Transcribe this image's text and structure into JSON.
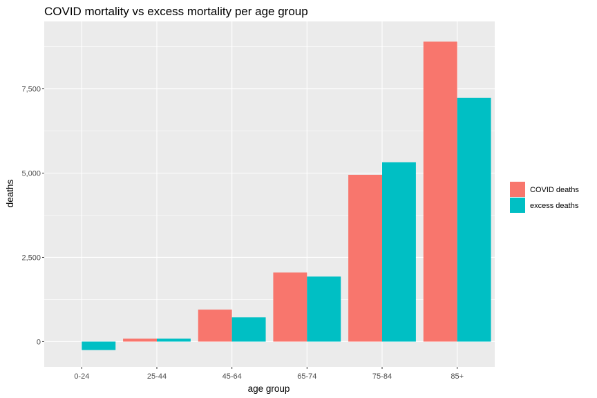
{
  "chart_data": {
    "type": "bar",
    "title": "COVID mortality vs excess mortality per age group",
    "xlabel": "age group",
    "ylabel": "deaths",
    "categories": [
      "0-24",
      "25-44",
      "45-64",
      "65-74",
      "75-84",
      "85+"
    ],
    "series": [
      {
        "name": "COVID deaths",
        "color": "#F8766D",
        "values": [
          0,
          90,
          950,
          2050,
          4950,
          8900
        ]
      },
      {
        "name": "excess deaths",
        "color": "#00BFC4",
        "values": [
          -250,
          90,
          720,
          1930,
          5320,
          7230
        ]
      }
    ],
    "ylim": [
      -750,
      9500
    ],
    "yticks": [
      0,
      2500,
      5000,
      7500
    ],
    "ytick_labels": [
      "0",
      "2,500",
      "5,000",
      "7,500"
    ],
    "grid": true,
    "legend_position": "right",
    "panel_color": "#EBEBEB",
    "grid_color": "#FFFFFF"
  }
}
